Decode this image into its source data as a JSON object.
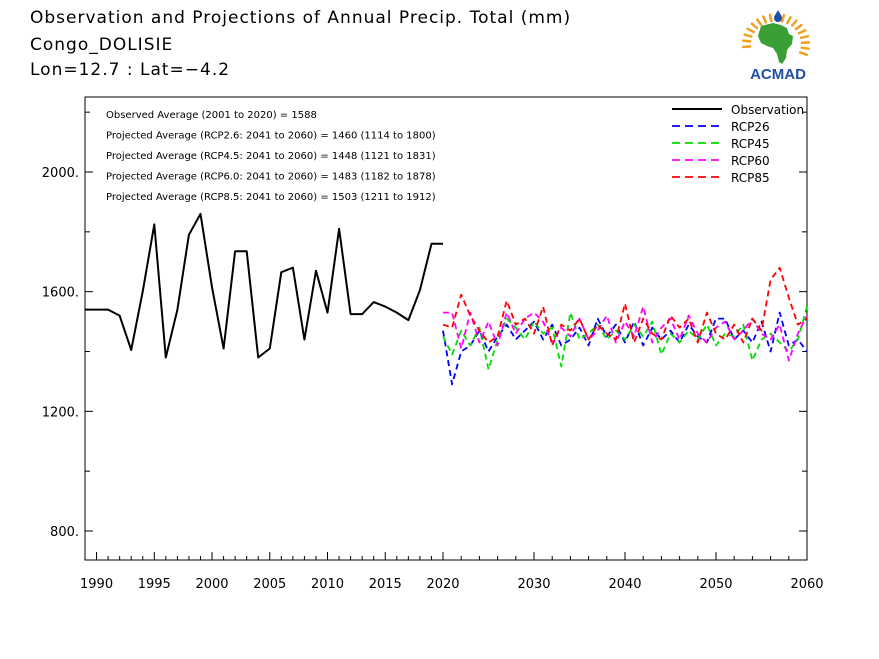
{
  "header": {
    "title": "Observation and Projections of Annual Precip. Total (mm)",
    "location": "Congo_DOLISIE",
    "coords": "Lon=12.7 : Lat=−4.2"
  },
  "logo": {
    "text": "ACMAD",
    "icon": "africa-map-logo"
  },
  "colors": {
    "observation": "#000000",
    "RCP26": "#0000ff",
    "RCP45": "#00dd00",
    "RCP60": "#ff00ff",
    "RCP85": "#ff0000",
    "logo_text": "#1f4fa3",
    "logo_green": "#3aa035",
    "logo_orange": "#f0a020"
  },
  "chart_data": {
    "type": "line",
    "x_ticks": [
      1990,
      1995,
      2000,
      2005,
      2010,
      2015,
      2020,
      2030,
      2040,
      2050,
      2060
    ],
    "y_ticks": [
      {
        "value": 800,
        "label": "800."
      },
      {
        "value": 1200,
        "label": "1200."
      },
      {
        "value": 1600,
        "label": "1600."
      },
      {
        "value": 2000,
        "label": "2000."
      }
    ],
    "ylim": [
      700,
      2250
    ],
    "annotations": [
      "Observed Average (2001 to 2020) = 1588",
      "Projected Average (RCP2.6: 2041 to 2060) = 1460 (1114 to 1800)",
      "Projected Average (RCP4.5: 2041 to 2060) = 1448 (1121 to 1831)",
      "Projected Average (RCP6.0: 2041 to 2060) = 1483 (1182 to 1878)",
      "Projected Average (RCP8.5: 2041 to 2060) = 1503 (1211 to 1912)"
    ],
    "legend_position": "top-right",
    "series": [
      {
        "name": "Observation",
        "key": "observation",
        "style": "solid",
        "x": [
          1989,
          1990,
          1991,
          1992,
          1993,
          1994,
          1995,
          1996,
          1997,
          1998,
          1999,
          2000,
          2001,
          2002,
          2003,
          2004,
          2005,
          2006,
          2007,
          2008,
          2009,
          2010,
          2011,
          2012,
          2013,
          2014,
          2015,
          2016,
          2017,
          2018,
          2019,
          2020
        ],
        "y": [
          1540,
          1540,
          1540,
          1520,
          1405,
          1600,
          1825,
          1380,
          1540,
          1790,
          1860,
          1615,
          1410,
          1735,
          1735,
          1380,
          1410,
          1665,
          1680,
          1440,
          1670,
          1530,
          1810,
          1525,
          1525,
          1565,
          1550,
          1530,
          1505,
          1605,
          1760,
          1760
        ]
      },
      {
        "name": "RCP26",
        "key": "RCP26",
        "style": "dashed",
        "x": [
          2020,
          2021,
          2022,
          2023,
          2024,
          2025,
          2026,
          2027,
          2028,
          2029,
          2030,
          2031,
          2032,
          2033,
          2034,
          2035,
          2036,
          2037,
          2038,
          2039,
          2040,
          2041,
          2042,
          2043,
          2044,
          2045,
          2046,
          2047,
          2048,
          2049,
          2050,
          2051,
          2052,
          2053,
          2054,
          2055,
          2056,
          2057,
          2058,
          2059,
          2060
        ],
        "y": [
          1470,
          1290,
          1400,
          1420,
          1470,
          1400,
          1450,
          1490,
          1440,
          1470,
          1500,
          1440,
          1490,
          1420,
          1440,
          1480,
          1420,
          1510,
          1450,
          1490,
          1430,
          1500,
          1420,
          1480,
          1440,
          1470,
          1430,
          1490,
          1450,
          1430,
          1510,
          1510,
          1440,
          1470,
          1430,
          1500,
          1400,
          1530,
          1420,
          1440,
          1400
        ]
      },
      {
        "name": "RCP45",
        "key": "RCP45",
        "style": "dashed",
        "x": [
          2020,
          2021,
          2022,
          2023,
          2024,
          2025,
          2026,
          2027,
          2028,
          2029,
          2030,
          2031,
          2032,
          2033,
          2034,
          2035,
          2036,
          2037,
          2038,
          2039,
          2040,
          2041,
          2042,
          2043,
          2044,
          2045,
          2046,
          2047,
          2048,
          2049,
          2050,
          2051,
          2052,
          2053,
          2054,
          2055,
          2056,
          2057,
          2058,
          2059,
          2060
        ],
        "y": [
          1450,
          1390,
          1470,
          1420,
          1480,
          1340,
          1440,
          1510,
          1480,
          1440,
          1500,
          1460,
          1480,
          1350,
          1530,
          1440,
          1460,
          1490,
          1440,
          1470,
          1440,
          1490,
          1450,
          1500,
          1390,
          1460,
          1430,
          1470,
          1440,
          1490,
          1420,
          1460,
          1450,
          1490,
          1370,
          1440,
          1460,
          1430,
          1400,
          1440,
          1550
        ]
      },
      {
        "name": "RCP60",
        "key": "RCP60",
        "style": "dashed",
        "x": [
          2020,
          2021,
          2022,
          2023,
          2024,
          2025,
          2026,
          2027,
          2028,
          2029,
          2030,
          2031,
          2032,
          2033,
          2034,
          2035,
          2036,
          2037,
          2038,
          2039,
          2040,
          2041,
          2042,
          2043,
          2044,
          2045,
          2046,
          2047,
          2048,
          2049,
          2050,
          2051,
          2052,
          2053,
          2054,
          2055,
          2056,
          2057,
          2058,
          2059,
          2060
        ],
        "y": [
          1530,
          1530,
          1410,
          1530,
          1430,
          1500,
          1420,
          1530,
          1460,
          1510,
          1530,
          1500,
          1430,
          1480,
          1450,
          1510,
          1440,
          1470,
          1520,
          1430,
          1500,
          1450,
          1550,
          1430,
          1480,
          1510,
          1440,
          1520,
          1460,
          1430,
          1480,
          1500,
          1440,
          1470,
          1510,
          1460,
          1440,
          1490,
          1370,
          1460,
          1520
        ]
      },
      {
        "name": "RCP85",
        "key": "RCP85",
        "style": "dashed",
        "x": [
          2020,
          2021,
          2022,
          2023,
          2024,
          2025,
          2026,
          2027,
          2028,
          2029,
          2030,
          2031,
          2032,
          2033,
          2034,
          2035,
          2036,
          2037,
          2038,
          2039,
          2040,
          2041,
          2042,
          2043,
          2044,
          2045,
          2046,
          2047,
          2048,
          2049,
          2050,
          2051,
          2052,
          2053,
          2054,
          2055,
          2056,
          2057,
          2058,
          2059,
          2060
        ],
        "y": [
          1490,
          1480,
          1590,
          1520,
          1470,
          1430,
          1450,
          1570,
          1490,
          1510,
          1460,
          1550,
          1420,
          1490,
          1470,
          1510,
          1440,
          1490,
          1460,
          1440,
          1560,
          1430,
          1510,
          1460,
          1440,
          1520,
          1480,
          1510,
          1430,
          1530,
          1460,
          1440,
          1490,
          1430,
          1510,
          1470,
          1640,
          1680,
          1580,
          1490,
          1510
        ]
      }
    ]
  }
}
